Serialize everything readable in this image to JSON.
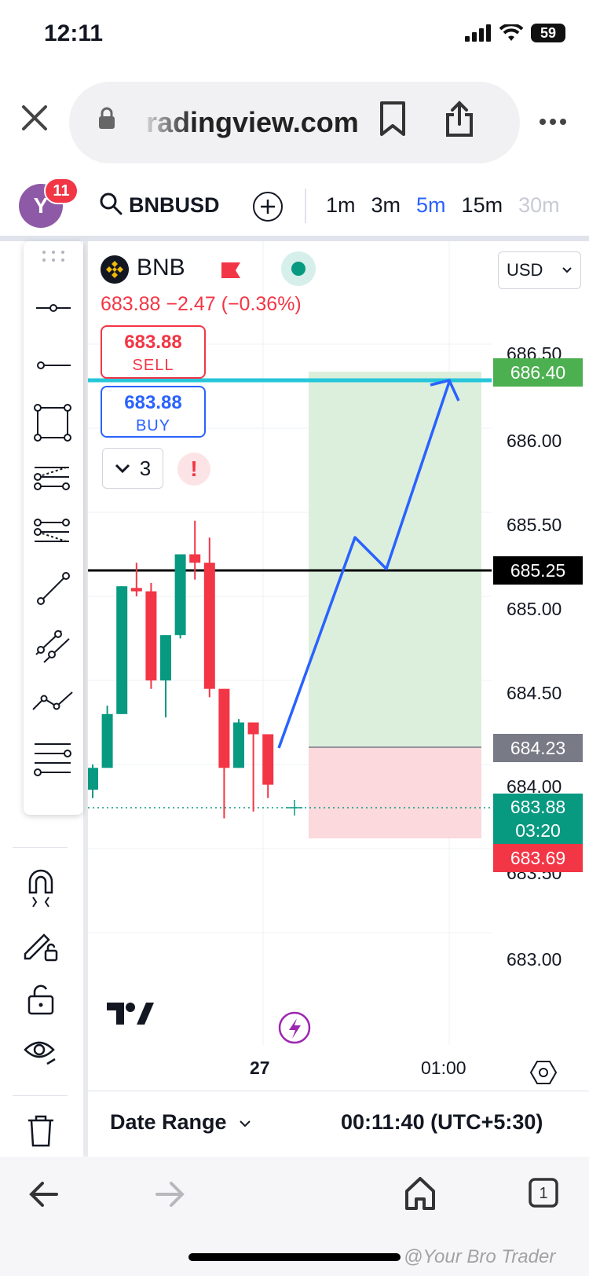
{
  "status": {
    "time": "12:11",
    "battery": "59"
  },
  "browser": {
    "url": "radingview.com"
  },
  "toolbar": {
    "avatar_letter": "Y",
    "notifications": "11",
    "symbol": "BNBUSD",
    "intervals": [
      "1m",
      "3m",
      "5m",
      "15m",
      "30m"
    ],
    "active_interval": "5m"
  },
  "legend": {
    "name": "BNB",
    "price_line": "683.88  −2.47 (−0.36%)",
    "sell_price": "683.88",
    "sell_label": "SELL",
    "buy_price": "683.88",
    "buy_label": "BUY",
    "orders_count": "3",
    "alert": "!",
    "currency": "USD"
  },
  "price_axis": {
    "ticks": [
      "686.50",
      "686.00",
      "685.50",
      "685.00",
      "684.50",
      "684.00",
      "683.50",
      "683.00"
    ],
    "labels": {
      "target": "686.40",
      "line": "685.25",
      "stop": "684.23",
      "current": "683.88",
      "countdown": "03:20",
      "low": "683.69"
    }
  },
  "time_axis": {
    "labels": [
      "27",
      "01:00"
    ]
  },
  "footer": {
    "date_range": "Date Range",
    "clock": "00:11:40 (UTC+5:30)"
  },
  "watermark": "@Your Bro Trader",
  "colors": {
    "up": "#089981",
    "down": "#f23645",
    "accent": "#2962ff",
    "target_zone": "#dcefdc",
    "stop_zone": "#fbd9dc"
  },
  "chart_data": {
    "type": "candlestick",
    "ylim": [
      682.8,
      686.8
    ],
    "candles": [
      {
        "o": 683.85,
        "h": 684.0,
        "l": 683.8,
        "c": 683.98
      },
      {
        "o": 683.98,
        "h": 684.35,
        "l": 683.98,
        "c": 684.3
      },
      {
        "o": 684.3,
        "h": 685.06,
        "l": 684.3,
        "c": 685.06
      },
      {
        "o": 685.05,
        "h": 685.2,
        "l": 685.0,
        "c": 685.03
      },
      {
        "o": 685.03,
        "h": 685.08,
        "l": 684.45,
        "c": 684.5
      },
      {
        "o": 684.5,
        "h": 684.77,
        "l": 684.28,
        "c": 684.77
      },
      {
        "o": 684.77,
        "h": 685.25,
        "l": 684.75,
        "c": 685.25
      },
      {
        "o": 685.25,
        "h": 685.45,
        "l": 685.1,
        "c": 685.2
      },
      {
        "o": 685.2,
        "h": 685.35,
        "l": 684.4,
        "c": 684.45
      },
      {
        "o": 684.45,
        "h": 684.45,
        "l": 683.68,
        "c": 683.98
      },
      {
        "o": 683.98,
        "h": 684.27,
        "l": 683.98,
        "c": 684.25
      },
      {
        "o": 684.25,
        "h": 684.25,
        "l": 683.72,
        "c": 684.18
      },
      {
        "o": 684.18,
        "h": 684.18,
        "l": 683.8,
        "c": 683.88
      }
    ],
    "horizontal_lines": [
      685.25,
      686.4
    ],
    "position": {
      "entry": 684.23,
      "target": 686.4,
      "stop": 683.69
    },
    "projection": [
      [
        684.2,
        0
      ],
      [
        685.42,
        1
      ],
      [
        685.25,
        2
      ],
      [
        686.4,
        3
      ]
    ]
  }
}
